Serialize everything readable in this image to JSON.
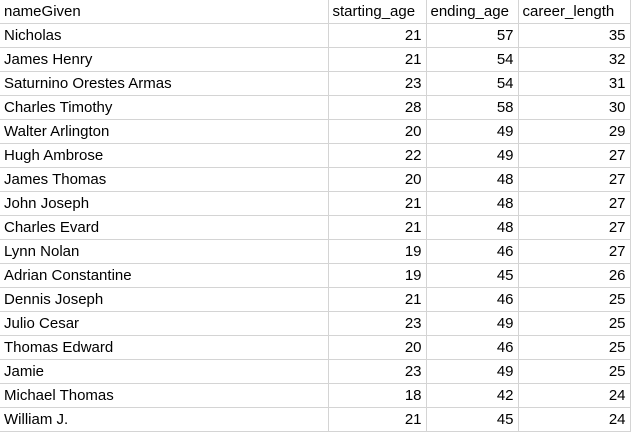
{
  "columns": [
    "nameGiven",
    "starting_age",
    "ending_age",
    "career_length"
  ],
  "rows": [
    [
      "Nicholas",
      "21",
      "57",
      "35"
    ],
    [
      "James Henry",
      "21",
      "54",
      "32"
    ],
    [
      "Saturnino Orestes Armas",
      "23",
      "54",
      "31"
    ],
    [
      "Charles Timothy",
      "28",
      "58",
      "30"
    ],
    [
      "Walter Arlington",
      "20",
      "49",
      "29"
    ],
    [
      "Hugh Ambrose",
      "22",
      "49",
      "27"
    ],
    [
      "James Thomas",
      "20",
      "48",
      "27"
    ],
    [
      "John Joseph",
      "21",
      "48",
      "27"
    ],
    [
      "Charles Evard",
      "21",
      "48",
      "27"
    ],
    [
      "Lynn Nolan",
      "19",
      "46",
      "27"
    ],
    [
      "Adrian Constantine",
      "19",
      "45",
      "26"
    ],
    [
      "Dennis Joseph",
      "21",
      "46",
      "25"
    ],
    [
      "Julio Cesar",
      "23",
      "49",
      "25"
    ],
    [
      "Thomas Edward",
      "20",
      "46",
      "25"
    ],
    [
      "Jamie",
      "23",
      "49",
      "25"
    ],
    [
      "Michael Thomas",
      "18",
      "42",
      "24"
    ],
    [
      "William J.",
      "21",
      "45",
      "24"
    ]
  ]
}
